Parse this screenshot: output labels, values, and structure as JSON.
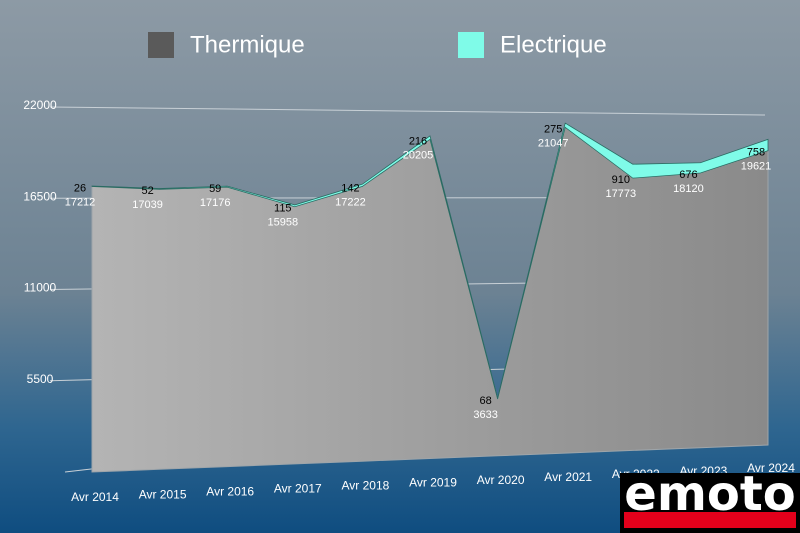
{
  "chart_data": {
    "type": "stacked-area",
    "categories": [
      "Avr 2014",
      "Avr 2015",
      "Avr 2016",
      "Avr 2017",
      "Avr 2018",
      "Avr 2019",
      "Avr 2020",
      "Avr 2021",
      "Avr 2022",
      "Avr 2023",
      "Avr 2024"
    ],
    "series": [
      {
        "name": "Thermique",
        "color": "#5a5a5a",
        "values": [
          17212,
          17039,
          17176,
          15958,
          17222,
          20205,
          3633,
          21047,
          17773,
          18120,
          19621
        ]
      },
      {
        "name": "Electrique",
        "color": "#7ffbe8",
        "values": [
          26,
          52,
          59,
          115,
          142,
          216,
          68,
          275,
          910,
          676,
          758
        ]
      }
    ],
    "ylim": [
      0,
      22000
    ],
    "yticks": [
      5500,
      11000,
      16500,
      22000
    ],
    "grid": true,
    "legend": "top"
  },
  "logo": "emoto"
}
